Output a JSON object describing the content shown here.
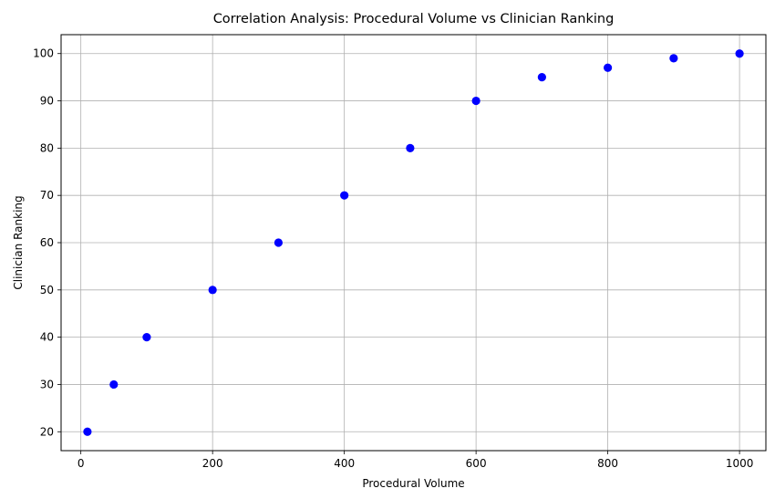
{
  "chart_data": {
    "type": "scatter",
    "title": "Correlation Analysis: Procedural Volume vs Clinician Ranking",
    "xlabel": "Procedural Volume",
    "ylabel": "Clinician Ranking",
    "xlim": [
      -30,
      1040
    ],
    "ylim": [
      16,
      104
    ],
    "xticks": [
      0,
      200,
      400,
      600,
      800,
      1000
    ],
    "yticks": [
      20,
      30,
      40,
      50,
      60,
      70,
      80,
      90,
      100
    ],
    "grid": true,
    "series": [
      {
        "color": "#0000ff",
        "points": [
          {
            "x": 10,
            "y": 20
          },
          {
            "x": 50,
            "y": 30
          },
          {
            "x": 100,
            "y": 40
          },
          {
            "x": 200,
            "y": 50
          },
          {
            "x": 300,
            "y": 60
          },
          {
            "x": 400,
            "y": 70
          },
          {
            "x": 500,
            "y": 80
          },
          {
            "x": 600,
            "y": 90
          },
          {
            "x": 700,
            "y": 95
          },
          {
            "x": 800,
            "y": 97
          },
          {
            "x": 900,
            "y": 99
          },
          {
            "x": 1000,
            "y": 100
          }
        ]
      }
    ]
  }
}
